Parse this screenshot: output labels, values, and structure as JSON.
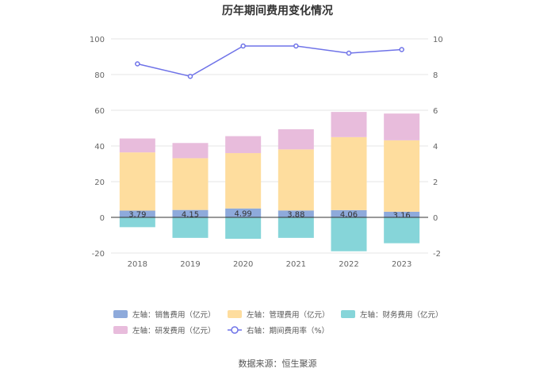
{
  "chart_data": {
    "type": "bar",
    "title": "历年期间费用变化情况",
    "categories": [
      "2018",
      "2019",
      "2020",
      "2021",
      "2022",
      "2023"
    ],
    "left_axis": {
      "ylim": [
        -20,
        100
      ],
      "ticks": [
        "-20",
        "0",
        "20",
        "40",
        "60",
        "80",
        "100"
      ]
    },
    "right_axis": {
      "ylim": [
        -2,
        10
      ],
      "ticks": [
        "-2",
        "0",
        "2",
        "4",
        "6",
        "8",
        "10"
      ]
    },
    "grid": true,
    "legend_position": "bottom",
    "series": [
      {
        "name": "左轴：销售费用（亿元）",
        "type": "stacked-bar",
        "axis": "left",
        "color": "#8eaadb",
        "values": [
          3.79,
          4.15,
          4.99,
          3.88,
          4.06,
          3.16
        ],
        "labels": [
          "3.79",
          "4.15",
          "4.99",
          "3.88",
          "4.06",
          "3.16"
        ]
      },
      {
        "name": "左轴：管理费用（亿元）",
        "type": "stacked-bar",
        "axis": "left",
        "color": "#fedd9e",
        "values": [
          32.6,
          29.0,
          31.0,
          34.2,
          40.9,
          40.0
        ]
      },
      {
        "name": "左轴：财务费用（亿元）",
        "type": "stacked-bar",
        "axis": "left",
        "color": "#86d5d9",
        "values": [
          -5.5,
          -11.5,
          -12.0,
          -11.5,
          -19.0,
          -14.5
        ]
      },
      {
        "name": "左轴：研发费用（亿元）",
        "type": "stacked-bar",
        "axis": "left",
        "color": "#e8bcdc",
        "values": [
          7.8,
          8.5,
          9.5,
          11.3,
          14.1,
          15.0
        ]
      },
      {
        "name": "右轴：期间费用率（%）",
        "type": "line",
        "axis": "right",
        "color": "#6f73e8",
        "values": [
          8.6,
          7.9,
          9.6,
          9.6,
          9.2,
          9.4
        ]
      }
    ]
  },
  "source_text": "数据来源：恒生聚源"
}
